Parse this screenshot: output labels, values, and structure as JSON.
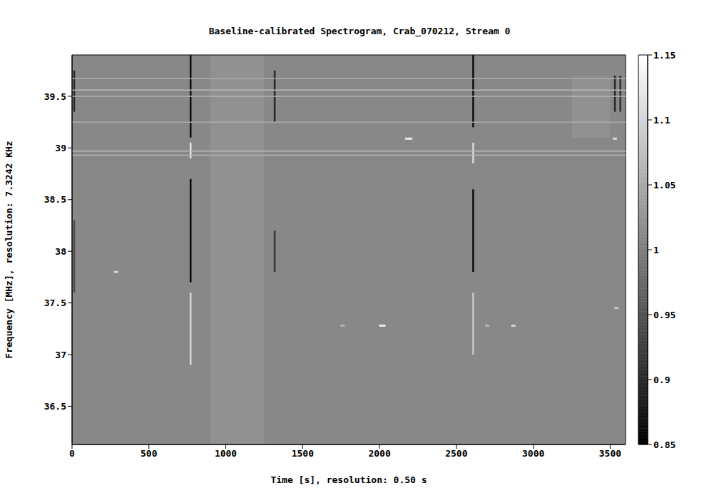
{
  "chart_data": {
    "type": "heatmap",
    "title": "Baseline-calibrated Spectrogram, Crab_070212, Stream 0",
    "xlabel": "Time [s], resolution: 0.50 s",
    "ylabel": "Frequency [MHz], resolution: 7.3242 KHz",
    "xlim": [
      0,
      3600
    ],
    "xticks": [
      0,
      500,
      1000,
      1500,
      2000,
      2500,
      3000,
      3500
    ],
    "ylim": [
      36.13,
      39.9
    ],
    "yticks": [
      36.5,
      37,
      37.5,
      38,
      38.5,
      39,
      39.5
    ],
    "colorbar_range": [
      0.85,
      1.15
    ],
    "colorbar_ticks": [
      0.85,
      0.9,
      0.95,
      1,
      1.05,
      1.1,
      1.15
    ],
    "background": 1.01,
    "cells": [
      {
        "x": [
          900,
          1250
        ],
        "y": [
          36.13,
          39.9
        ],
        "value": 1.02
      },
      {
        "x": [
          3250,
          3500
        ],
        "y": [
          39.1,
          39.7
        ],
        "value": 1.02
      },
      {
        "x": [
          8,
          20
        ],
        "y": [
          39.35,
          39.75
        ],
        "value": 0.9
      },
      {
        "x": [
          8,
          20
        ],
        "y": [
          37.6,
          38.3
        ],
        "value": 0.94
      },
      {
        "x": [
          765,
          777
        ],
        "y": [
          39.1,
          39.9
        ],
        "value": 0.87
      },
      {
        "x": [
          765,
          777
        ],
        "y": [
          38.9,
          39.05
        ],
        "value": 1.12
      },
      {
        "x": [
          765,
          777
        ],
        "y": [
          37.7,
          38.7
        ],
        "value": 0.86
      },
      {
        "x": [
          765,
          777
        ],
        "y": [
          36.9,
          37.6
        ],
        "value": 1.1
      },
      {
        "x": [
          1312,
          1324
        ],
        "y": [
          39.25,
          39.75
        ],
        "value": 0.9
      },
      {
        "x": [
          1312,
          1324
        ],
        "y": [
          37.8,
          38.2
        ],
        "value": 0.92
      },
      {
        "x": [
          2603,
          2615
        ],
        "y": [
          39.2,
          39.9
        ],
        "value": 0.87
      },
      {
        "x": [
          2603,
          2615
        ],
        "y": [
          38.85,
          39.05
        ],
        "value": 1.1
      },
      {
        "x": [
          2603,
          2615
        ],
        "y": [
          37.8,
          38.6
        ],
        "value": 0.87
      },
      {
        "x": [
          2603,
          2615
        ],
        "y": [
          37.0,
          37.6
        ],
        "value": 1.08
      },
      {
        "x": [
          3525,
          3537
        ],
        "y": [
          39.35,
          39.7
        ],
        "value": 0.9
      },
      {
        "x": [
          3560,
          3572
        ],
        "y": [
          39.35,
          39.7
        ],
        "value": 0.91
      }
    ],
    "horizontal_lines": [
      {
        "y": 39.67,
        "value": 1.05
      },
      {
        "y": 39.56,
        "value": 1.07
      },
      {
        "y": 39.5,
        "value": 1.06
      },
      {
        "y": 39.25,
        "value": 1.05
      },
      {
        "y": 38.97,
        "value": 1.07
      },
      {
        "y": 38.93,
        "value": 1.06
      }
    ],
    "points": [
      {
        "x": 285,
        "y": 37.8,
        "value": 1.1
      },
      {
        "x": 1760,
        "y": 37.28,
        "value": 1.06
      },
      {
        "x": 2010,
        "y": 37.28,
        "value": 1.12
      },
      {
        "x": 2025,
        "y": 37.28,
        "value": 1.12
      },
      {
        "x": 2180,
        "y": 39.09,
        "value": 1.12
      },
      {
        "x": 2200,
        "y": 39.09,
        "value": 1.12
      },
      {
        "x": 2700,
        "y": 37.28,
        "value": 1.06
      },
      {
        "x": 2870,
        "y": 37.28,
        "value": 1.1
      },
      {
        "x": 3530,
        "y": 39.09,
        "value": 1.1
      },
      {
        "x": 3540,
        "y": 37.45,
        "value": 1.08
      }
    ]
  }
}
